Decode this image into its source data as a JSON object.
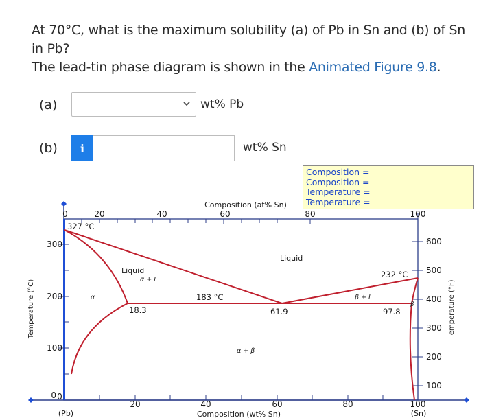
{
  "question": {
    "line1": "At 70°C, what is the maximum solubility (a) of Pb in Sn and (b) of Sn in Pb?",
    "line2_prefix": "The lead-tin phase diagram is shown in the ",
    "link": "Animated Figure 9.8",
    "line2_suffix": "."
  },
  "part_a": {
    "label": "(a)",
    "selected": "",
    "unit": "wt% Pb"
  },
  "part_b": {
    "label": "(b)",
    "value": "",
    "unit": "wt% Sn",
    "info_button": "i"
  },
  "readout": [
    "Composition =",
    "Composition =",
    "Temperature =",
    "Temperature ="
  ],
  "diagram": {
    "top_axis_title": "Composition (at% Sn)",
    "bottom_axis_title": "Composition (wt% Sn)",
    "left_axis_title": "Temperature (°C)",
    "right_axis_title": "Temperature (°F)",
    "top_ticks": [
      "0",
      "20",
      "40",
      "60",
      "80",
      "100"
    ],
    "bottom_ticks": [
      "0",
      "20",
      "40",
      "60",
      "80",
      "100"
    ],
    "bottom_end_left": "(Pb)",
    "bottom_end_right": "(Sn)",
    "left_ticks": [
      "0",
      "100",
      "200",
      "300"
    ],
    "right_ticks": [
      "100",
      "200",
      "300",
      "400",
      "500",
      "600"
    ],
    "labels": {
      "pb_melt": "327 °C",
      "sn_melt": "232 °C",
      "eutectic_temp": "183 °C",
      "alpha_limit": "18.3",
      "eutectic_comp": "61.9",
      "beta_limit": "97.8",
      "liquid_top": "Liquid",
      "liquid_left": "Liquid",
      "alpha_plus_l": "α + L",
      "beta_plus_l": "β + L",
      "alpha": "α",
      "beta": "β",
      "alpha_plus_beta": "α + β"
    },
    "colors": {
      "axis": "#2d3e8a",
      "phase_line": "#c0202e",
      "marker": "#1f4fd6"
    }
  }
}
